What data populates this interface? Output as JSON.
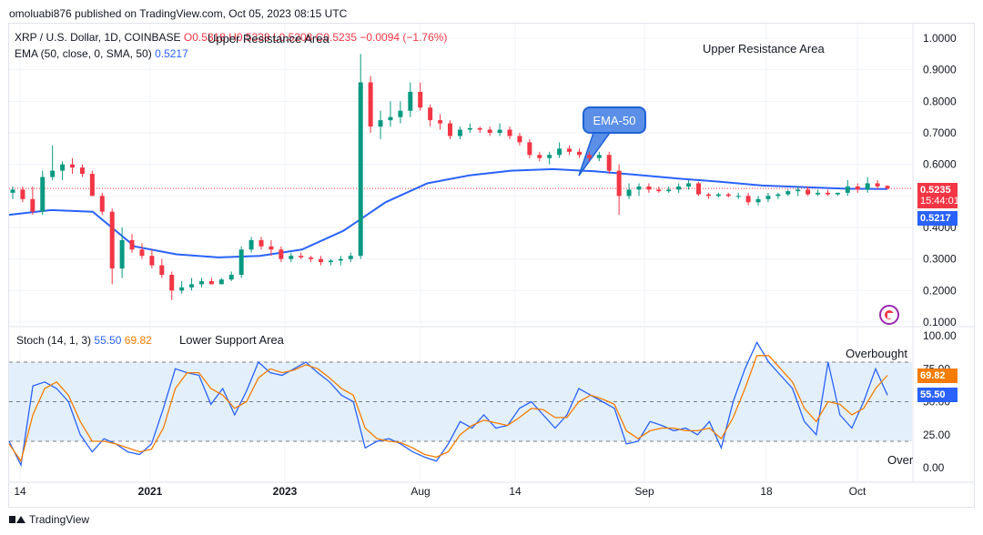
{
  "header": {
    "attribution": "omoluabi876 published on TradingView.com, Oct 05, 2023 08:15 UTC"
  },
  "legend": {
    "symbol": "XRP / U.S. Dollar, 1D, COINBASE",
    "ohlc_fragment": "O0.5318 H0.5338 L0.5208 C0.5235",
    "change": "−0.0094 (−1.76%)",
    "ema_label": "EMA (50, close, 0, SMA, 50)",
    "ema_value": "0.5217",
    "stoch_label": "Stoch (14, 1, 3)",
    "stoch_k": "55.50",
    "stoch_d": "69.82"
  },
  "annotations": {
    "upper_resistance_overlap": "Upper Resistance Area",
    "upper_resistance": "Upper Resistance Area",
    "lower_support": "Lower Support Area",
    "overbought": "Overbought",
    "oversold": "Over",
    "ema_callout": "EMA-50"
  },
  "price_tags": {
    "last_price": "0.5235",
    "countdown": "15:44:01",
    "ema": "0.5217"
  },
  "colors": {
    "up": "#089981",
    "down": "#f23645",
    "ema": "#2962ff",
    "stoch_k": "#2962ff",
    "stoch_d": "#f57c00",
    "band_fill": "#e3f0fc"
  },
  "footer": {
    "brand": "TradingView"
  },
  "chart_data": [
    {
      "type": "candlestick",
      "title": "XRP / U.S. Dollar, 1D, COINBASE",
      "y_axis": {
        "scale": "log",
        "ticks": [
          "1.0000",
          "0.9000",
          "0.8000",
          "0.7000",
          "0.6000",
          "0.5000",
          "0.4000",
          "0.3000",
          "0.2000",
          "0.1000"
        ]
      },
      "x_axis": {
        "ticks": [
          "14",
          "2021",
          "2023",
          "Aug",
          "14",
          "Sep",
          "18",
          "Oct"
        ]
      },
      "candles": [
        {
          "o": 0.51,
          "h": 0.53,
          "l": 0.49,
          "c": 0.52
        },
        {
          "o": 0.52,
          "h": 0.53,
          "l": 0.48,
          "c": 0.49
        },
        {
          "o": 0.49,
          "h": 0.53,
          "l": 0.44,
          "c": 0.45
        },
        {
          "o": 0.45,
          "h": 0.58,
          "l": 0.44,
          "c": 0.56
        },
        {
          "o": 0.56,
          "h": 0.66,
          "l": 0.55,
          "c": 0.58
        },
        {
          "o": 0.58,
          "h": 0.61,
          "l": 0.55,
          "c": 0.6
        },
        {
          "o": 0.6,
          "h": 0.62,
          "l": 0.57,
          "c": 0.59
        },
        {
          "o": 0.59,
          "h": 0.6,
          "l": 0.56,
          "c": 0.57
        },
        {
          "o": 0.57,
          "h": 0.58,
          "l": 0.5,
          "c": 0.5
        },
        {
          "o": 0.5,
          "h": 0.51,
          "l": 0.44,
          "c": 0.45
        },
        {
          "o": 0.45,
          "h": 0.46,
          "l": 0.22,
          "c": 0.27
        },
        {
          "o": 0.27,
          "h": 0.4,
          "l": 0.24,
          "c": 0.36
        },
        {
          "o": 0.36,
          "h": 0.38,
          "l": 0.32,
          "c": 0.33
        },
        {
          "o": 0.33,
          "h": 0.35,
          "l": 0.3,
          "c": 0.31
        },
        {
          "o": 0.31,
          "h": 0.33,
          "l": 0.27,
          "c": 0.28
        },
        {
          "o": 0.28,
          "h": 0.3,
          "l": 0.24,
          "c": 0.25
        },
        {
          "o": 0.25,
          "h": 0.26,
          "l": 0.17,
          "c": 0.2
        },
        {
          "o": 0.2,
          "h": 0.23,
          "l": 0.19,
          "c": 0.21
        },
        {
          "o": 0.21,
          "h": 0.24,
          "l": 0.2,
          "c": 0.22
        },
        {
          "o": 0.22,
          "h": 0.24,
          "l": 0.21,
          "c": 0.23
        },
        {
          "o": 0.23,
          "h": 0.24,
          "l": 0.22,
          "c": 0.22
        },
        {
          "o": 0.22,
          "h": 0.24,
          "l": 0.22,
          "c": 0.235
        },
        {
          "o": 0.235,
          "h": 0.26,
          "l": 0.23,
          "c": 0.25
        },
        {
          "o": 0.25,
          "h": 0.34,
          "l": 0.24,
          "c": 0.33
        },
        {
          "o": 0.33,
          "h": 0.37,
          "l": 0.32,
          "c": 0.36
        },
        {
          "o": 0.36,
          "h": 0.37,
          "l": 0.33,
          "c": 0.34
        },
        {
          "o": 0.34,
          "h": 0.36,
          "l": 0.31,
          "c": 0.33
        },
        {
          "o": 0.33,
          "h": 0.34,
          "l": 0.29,
          "c": 0.3
        },
        {
          "o": 0.3,
          "h": 0.32,
          "l": 0.29,
          "c": 0.31
        },
        {
          "o": 0.31,
          "h": 0.32,
          "l": 0.3,
          "c": 0.305
        },
        {
          "o": 0.305,
          "h": 0.31,
          "l": 0.29,
          "c": 0.3
        },
        {
          "o": 0.3,
          "h": 0.31,
          "l": 0.28,
          "c": 0.29
        },
        {
          "o": 0.29,
          "h": 0.3,
          "l": 0.28,
          "c": 0.295
        },
        {
          "o": 0.295,
          "h": 0.31,
          "l": 0.28,
          "c": 0.3
        },
        {
          "o": 0.3,
          "h": 0.32,
          "l": 0.29,
          "c": 0.31
        },
        {
          "o": 0.31,
          "h": 0.95,
          "l": 0.3,
          "c": 0.86
        },
        {
          "o": 0.86,
          "h": 0.88,
          "l": 0.7,
          "c": 0.72
        },
        {
          "o": 0.72,
          "h": 0.77,
          "l": 0.68,
          "c": 0.74
        },
        {
          "o": 0.74,
          "h": 0.8,
          "l": 0.72,
          "c": 0.75
        },
        {
          "o": 0.75,
          "h": 0.8,
          "l": 0.73,
          "c": 0.77
        },
        {
          "o": 0.77,
          "h": 0.86,
          "l": 0.75,
          "c": 0.83
        },
        {
          "o": 0.83,
          "h": 0.86,
          "l": 0.77,
          "c": 0.78
        },
        {
          "o": 0.78,
          "h": 0.79,
          "l": 0.72,
          "c": 0.74
        },
        {
          "o": 0.74,
          "h": 0.76,
          "l": 0.71,
          "c": 0.73
        },
        {
          "o": 0.73,
          "h": 0.74,
          "l": 0.68,
          "c": 0.69
        },
        {
          "o": 0.69,
          "h": 0.72,
          "l": 0.68,
          "c": 0.71
        },
        {
          "o": 0.71,
          "h": 0.73,
          "l": 0.7,
          "c": 0.715
        },
        {
          "o": 0.715,
          "h": 0.72,
          "l": 0.7,
          "c": 0.71
        },
        {
          "o": 0.71,
          "h": 0.72,
          "l": 0.69,
          "c": 0.7
        },
        {
          "o": 0.7,
          "h": 0.73,
          "l": 0.69,
          "c": 0.71
        },
        {
          "o": 0.71,
          "h": 0.72,
          "l": 0.68,
          "c": 0.69
        },
        {
          "o": 0.69,
          "h": 0.7,
          "l": 0.66,
          "c": 0.67
        },
        {
          "o": 0.67,
          "h": 0.68,
          "l": 0.62,
          "c": 0.63
        },
        {
          "o": 0.63,
          "h": 0.64,
          "l": 0.61,
          "c": 0.62
        },
        {
          "o": 0.62,
          "h": 0.64,
          "l": 0.6,
          "c": 0.63
        },
        {
          "o": 0.63,
          "h": 0.67,
          "l": 0.62,
          "c": 0.65
        },
        {
          "o": 0.65,
          "h": 0.66,
          "l": 0.63,
          "c": 0.64
        },
        {
          "o": 0.64,
          "h": 0.65,
          "l": 0.62,
          "c": 0.63
        },
        {
          "o": 0.63,
          "h": 0.64,
          "l": 0.61,
          "c": 0.62
        },
        {
          "o": 0.62,
          "h": 0.64,
          "l": 0.61,
          "c": 0.63
        },
        {
          "o": 0.63,
          "h": 0.64,
          "l": 0.57,
          "c": 0.58
        },
        {
          "o": 0.58,
          "h": 0.6,
          "l": 0.44,
          "c": 0.5
        },
        {
          "o": 0.5,
          "h": 0.54,
          "l": 0.49,
          "c": 0.52
        },
        {
          "o": 0.52,
          "h": 0.54,
          "l": 0.5,
          "c": 0.53
        },
        {
          "o": 0.53,
          "h": 0.54,
          "l": 0.51,
          "c": 0.52
        },
        {
          "o": 0.52,
          "h": 0.53,
          "l": 0.51,
          "c": 0.515
        },
        {
          "o": 0.515,
          "h": 0.53,
          "l": 0.51,
          "c": 0.52
        },
        {
          "o": 0.52,
          "h": 0.54,
          "l": 0.51,
          "c": 0.53
        },
        {
          "o": 0.53,
          "h": 0.55,
          "l": 0.52,
          "c": 0.54
        },
        {
          "o": 0.54,
          "h": 0.545,
          "l": 0.5,
          "c": 0.505
        },
        {
          "o": 0.505,
          "h": 0.51,
          "l": 0.49,
          "c": 0.5
        },
        {
          "o": 0.5,
          "h": 0.51,
          "l": 0.495,
          "c": 0.505
        },
        {
          "o": 0.505,
          "h": 0.51,
          "l": 0.495,
          "c": 0.5
        },
        {
          "o": 0.5,
          "h": 0.51,
          "l": 0.49,
          "c": 0.5
        },
        {
          "o": 0.5,
          "h": 0.51,
          "l": 0.47,
          "c": 0.48
        },
        {
          "o": 0.48,
          "h": 0.5,
          "l": 0.47,
          "c": 0.49
        },
        {
          "o": 0.49,
          "h": 0.51,
          "l": 0.48,
          "c": 0.5
        },
        {
          "o": 0.5,
          "h": 0.51,
          "l": 0.49,
          "c": 0.505
        },
        {
          "o": 0.505,
          "h": 0.52,
          "l": 0.5,
          "c": 0.515
        },
        {
          "o": 0.515,
          "h": 0.53,
          "l": 0.5,
          "c": 0.52
        },
        {
          "o": 0.52,
          "h": 0.53,
          "l": 0.5,
          "c": 0.505
        },
        {
          "o": 0.505,
          "h": 0.52,
          "l": 0.5,
          "c": 0.51
        },
        {
          "o": 0.51,
          "h": 0.52,
          "l": 0.5,
          "c": 0.505
        },
        {
          "o": 0.505,
          "h": 0.51,
          "l": 0.5,
          "c": 0.51
        },
        {
          "o": 0.51,
          "h": 0.55,
          "l": 0.5,
          "c": 0.53
        },
        {
          "o": 0.53,
          "h": 0.54,
          "l": 0.51,
          "c": 0.52
        },
        {
          "o": 0.52,
          "h": 0.56,
          "l": 0.51,
          "c": 0.54
        },
        {
          "o": 0.54,
          "h": 0.55,
          "l": 0.52,
          "c": 0.53
        },
        {
          "o": 0.5318,
          "h": 0.5338,
          "l": 0.5208,
          "c": 0.5235
        }
      ],
      "ema50": [
        0.44,
        0.455,
        0.45,
        0.34,
        0.315,
        0.305,
        0.31,
        0.33,
        0.39,
        0.48,
        0.54,
        0.565,
        0.58,
        0.585,
        0.578,
        0.567,
        0.555,
        0.545,
        0.533,
        0.528,
        0.523,
        0.5217
      ]
    },
    {
      "type": "line",
      "title": "Stoch (14, 1, 3)",
      "y_axis": {
        "ticks": [
          "100.00",
          "75.00",
          "50.00",
          "25.00",
          "0.00"
        ],
        "ylim": [
          0,
          100
        ]
      },
      "bands": {
        "upper": 80,
        "middle": 50,
        "lower": 20
      },
      "series": [
        {
          "name": "%K",
          "values": [
            20,
            2,
            62,
            65,
            60,
            50,
            25,
            12,
            22,
            18,
            12,
            10,
            18,
            45,
            75,
            72,
            70,
            48,
            60,
            40,
            58,
            80,
            72,
            70,
            75,
            80,
            72,
            65,
            55,
            50,
            15,
            20,
            22,
            18,
            12,
            8,
            5,
            18,
            35,
            30,
            40,
            30,
            32,
            45,
            50,
            40,
            30,
            40,
            60,
            55,
            50,
            45,
            18,
            20,
            35,
            32,
            28,
            30,
            25,
            35,
            15,
            50,
            75,
            95,
            80,
            70,
            60,
            35,
            25,
            80,
            40,
            30,
            50,
            75,
            55
          ]
        },
        {
          "name": "%D",
          "values": [
            18,
            5,
            40,
            60,
            65,
            55,
            35,
            20,
            20,
            18,
            15,
            12,
            14,
            30,
            60,
            72,
            72,
            60,
            55,
            45,
            50,
            68,
            75,
            72,
            74,
            78,
            75,
            68,
            60,
            55,
            30,
            22,
            20,
            19,
            15,
            10,
            8,
            12,
            25,
            32,
            36,
            34,
            32,
            38,
            45,
            44,
            38,
            38,
            50,
            55,
            52,
            48,
            28,
            22,
            28,
            30,
            30,
            28,
            28,
            30,
            22,
            38,
            60,
            85,
            85,
            75,
            65,
            45,
            35,
            50,
            48,
            40,
            45,
            60,
            70
          ]
        }
      ]
    }
  ]
}
